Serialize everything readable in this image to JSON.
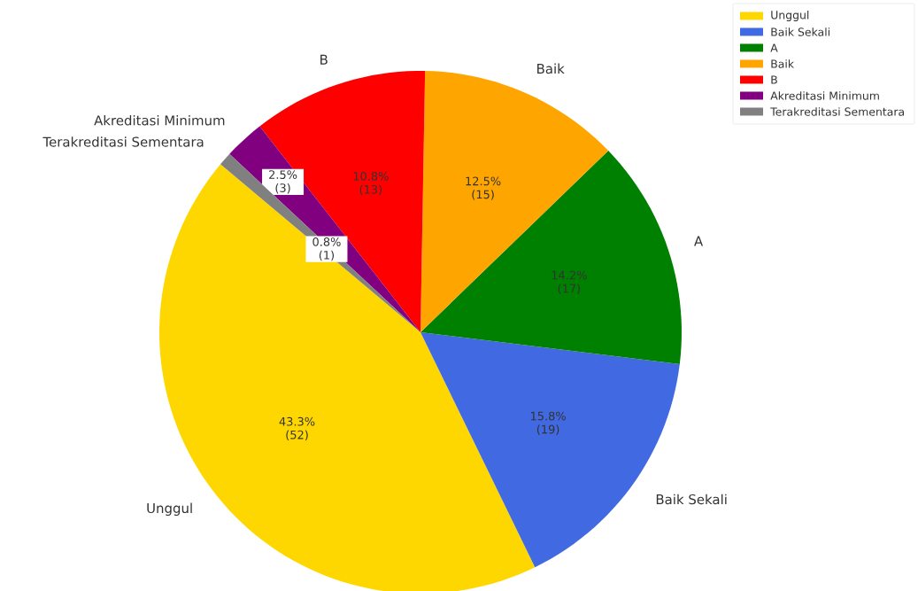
{
  "chart_data": {
    "type": "pie",
    "categories": [
      "Unggul",
      "Baik Sekali",
      "A",
      "Baik",
      "B",
      "Akreditasi Minimum",
      "Terakreditasi Sementara"
    ],
    "values": [
      52,
      19,
      17,
      15,
      13,
      3,
      1
    ],
    "colors": [
      "#ffd700",
      "#4169e1",
      "#008000",
      "#ffa500",
      "#ff0000",
      "#800080",
      "#808080"
    ],
    "value_labels": [
      "43.3% (52)",
      "15.8% (19)",
      "14.2% (17)",
      "12.5% (15)",
      "10.8% (13)",
      "2.5% (3)",
      "0.8% (1)"
    ],
    "legend": "top right"
  }
}
